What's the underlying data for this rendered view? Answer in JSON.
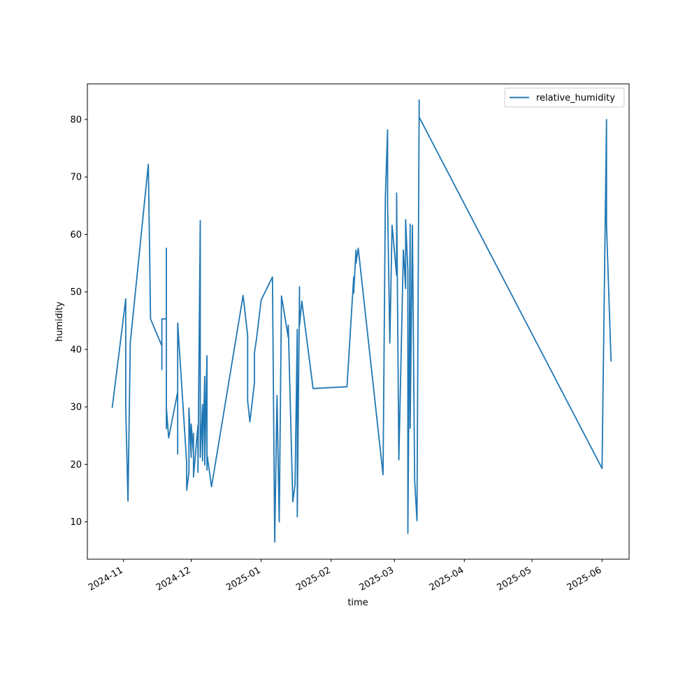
{
  "chart_data": {
    "type": "line",
    "title": "",
    "xlabel": "time",
    "ylabel": "humidity",
    "x_axis_type": "date",
    "xlim": [
      "2024-10-16",
      "2025-06-13"
    ],
    "ylim": [
      3.5,
      86.2
    ],
    "x_ticks": [
      {
        "date": "2024-11-01",
        "label": "2024-11"
      },
      {
        "date": "2024-12-01",
        "label": "2024-12"
      },
      {
        "date": "2025-01-01",
        "label": "2025-01"
      },
      {
        "date": "2025-02-01",
        "label": "2025-02"
      },
      {
        "date": "2025-03-01",
        "label": "2025-03"
      },
      {
        "date": "2025-04-01",
        "label": "2025-04"
      },
      {
        "date": "2025-05-01",
        "label": "2025-05"
      },
      {
        "date": "2025-06-01",
        "label": "2025-06"
      }
    ],
    "y_ticks": [
      10,
      20,
      30,
      40,
      50,
      60,
      70,
      80
    ],
    "grid": false,
    "legend_position": "top-right",
    "series": [
      {
        "name": "relative_humidity",
        "color": "#1f77b4",
        "points": [
          [
            "2024-10-27",
            29.8
          ],
          [
            "2024-11-02",
            48.8
          ],
          [
            "2024-11-02",
            29.9
          ],
          [
            "2024-11-03",
            13.6
          ],
          [
            "2024-11-04",
            41.2
          ],
          [
            "2024-11-12",
            72.2
          ],
          [
            "2024-11-13",
            45.3
          ],
          [
            "2024-11-18",
            40.6
          ],
          [
            "2024-11-18",
            36.5
          ],
          [
            "2024-11-18",
            45.3
          ],
          [
            "2024-11-20",
            45.3
          ],
          [
            "2024-11-20",
            57.6
          ],
          [
            "2024-11-20",
            26.2
          ],
          [
            "2024-11-20",
            29.9
          ],
          [
            "2024-11-21",
            24.6
          ],
          [
            "2024-11-25",
            32.6
          ],
          [
            "2024-11-25",
            21.8
          ],
          [
            "2024-11-25",
            44.6
          ],
          [
            "2024-11-29",
            20.2
          ],
          [
            "2024-11-29",
            15.5
          ],
          [
            "2024-11-30",
            18.6
          ],
          [
            "2024-11-30",
            29.8
          ],
          [
            "2024-12-01",
            21.2
          ],
          [
            "2024-12-01",
            27.0
          ],
          [
            "2024-12-02",
            21.8
          ],
          [
            "2024-12-02",
            25.4
          ],
          [
            "2024-12-02",
            17.8
          ],
          [
            "2024-12-04",
            26.8
          ],
          [
            "2024-12-04",
            18.6
          ],
          [
            "2024-12-05",
            62.4
          ],
          [
            "2024-12-05",
            21.2
          ],
          [
            "2024-12-06",
            30.4
          ],
          [
            "2024-12-06",
            20.6
          ],
          [
            "2024-12-07",
            35.3
          ],
          [
            "2024-12-07",
            19.9
          ],
          [
            "2024-12-08",
            38.9
          ],
          [
            "2024-12-08",
            19.0
          ],
          [
            "2024-12-08",
            21.8
          ],
          [
            "2024-12-10",
            16.1
          ],
          [
            "2024-12-24",
            49.4
          ],
          [
            "2024-12-26",
            42.4
          ],
          [
            "2024-12-26",
            31.1
          ],
          [
            "2024-12-27",
            27.4
          ],
          [
            "2024-12-29",
            34.2
          ],
          [
            "2024-12-29",
            39.4
          ],
          [
            "2024-12-30",
            42.0
          ],
          [
            "2025-01-01",
            48.6
          ],
          [
            "2025-01-06",
            52.6
          ],
          [
            "2025-01-07",
            6.5
          ],
          [
            "2025-01-08",
            32.0
          ],
          [
            "2025-01-09",
            10.0
          ],
          [
            "2025-01-10",
            49.3
          ],
          [
            "2025-01-13",
            42.1
          ],
          [
            "2025-01-13",
            44.2
          ],
          [
            "2025-01-15",
            13.5
          ],
          [
            "2025-01-16",
            16.5
          ],
          [
            "2025-01-17",
            43.5
          ],
          [
            "2025-01-17",
            10.9
          ],
          [
            "2025-01-18",
            50.9
          ],
          [
            "2025-01-18",
            44.2
          ],
          [
            "2025-01-19",
            48.4
          ],
          [
            "2025-01-24",
            33.2
          ],
          [
            "2025-02-08",
            33.5
          ],
          [
            "2025-02-11",
            52.6
          ],
          [
            "2025-02-11",
            49.8
          ],
          [
            "2025-02-12",
            57.3
          ],
          [
            "2025-02-12",
            55.0
          ],
          [
            "2025-02-13",
            57.6
          ],
          [
            "2025-02-24",
            18.2
          ],
          [
            "2025-02-25",
            66.5
          ],
          [
            "2025-02-26",
            78.2
          ],
          [
            "2025-02-26",
            65.3
          ],
          [
            "2025-02-27",
            41.1
          ],
          [
            "2025-02-28",
            61.6
          ],
          [
            "2025-03-02",
            52.9
          ],
          [
            "2025-03-02",
            67.2
          ],
          [
            "2025-03-03",
            20.8
          ],
          [
            "2025-03-05",
            57.3
          ],
          [
            "2025-03-06",
            50.6
          ],
          [
            "2025-03-06",
            62.6
          ],
          [
            "2025-03-07",
            53.7
          ],
          [
            "2025-03-07",
            8.0
          ],
          [
            "2025-03-08",
            61.8
          ],
          [
            "2025-03-08",
            26.3
          ],
          [
            "2025-03-09",
            61.6
          ],
          [
            "2025-03-10",
            17.3
          ],
          [
            "2025-03-11",
            10.2
          ],
          [
            "2025-03-12",
            83.4
          ],
          [
            "2025-03-12",
            80.4
          ],
          [
            "2025-06-01",
            19.3
          ],
          [
            "2025-06-03",
            80.0
          ],
          [
            "2025-06-03",
            61.6
          ],
          [
            "2025-06-05",
            37.9
          ]
        ]
      }
    ]
  }
}
